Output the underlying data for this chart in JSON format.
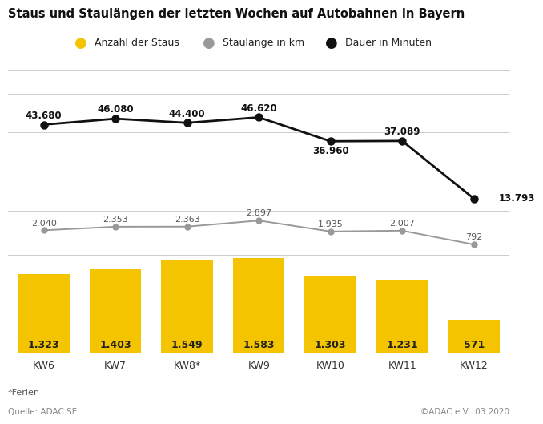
{
  "title": "Staus und Staulängen der letzten Wochen auf Autobahnen in Bayern",
  "categories": [
    "KW6",
    "KW7",
    "KW8*",
    "KW9",
    "KW10",
    "KW11",
    "KW12"
  ],
  "bar_values": [
    1323,
    1403,
    1549,
    1583,
    1303,
    1231,
    571
  ],
  "bar_labels": [
    "1.323",
    "1.403",
    "1.549",
    "1.583",
    "1.303",
    "1.231",
    "571"
  ],
  "stau_laenge": [
    2.04,
    2.353,
    2.363,
    2.897,
    1.935,
    2.007,
    0.792
  ],
  "stau_laenge_labels": [
    "2.040",
    "2.353",
    "2.363",
    "2.897",
    "1.935",
    "2.007",
    "792"
  ],
  "dauer": [
    43680,
    46080,
    44400,
    46620,
    36960,
    37089,
    13793
  ],
  "dauer_labels": [
    "43.680",
    "46.080",
    "44.400",
    "46.620",
    "36.960",
    "37.089",
    "13.793"
  ],
  "bar_color": "#F5C400",
  "stau_color": "#999999",
  "dauer_color": "#111111",
  "background_color": "#FFFFFF",
  "legend_labels": [
    "Anzahl der Staus",
    "Staulänge in km",
    "Dauer in Minuten"
  ],
  "footnote": "*Ferien",
  "source_left": "Quelle: ADAC SE",
  "source_right": "©ADAC e.V.  03.2020",
  "title_fontsize": 10.5,
  "label_fontsize": 8.5,
  "bar_label_fontsize": 9,
  "tick_fontsize": 9,
  "legend_fontsize": 9
}
